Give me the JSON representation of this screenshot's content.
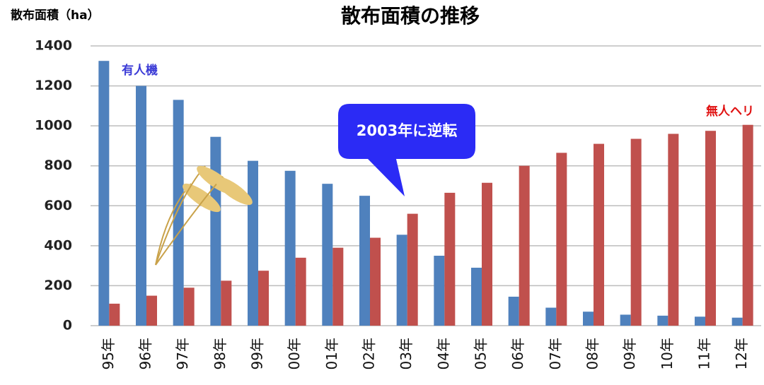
{
  "chart_data": {
    "type": "bar",
    "title": "散布面積の推移",
    "y_label": "散布面積（ha）",
    "annotation": "2003年に逆転",
    "categories": [
      "95年",
      "96年",
      "97年",
      "98年",
      "99年",
      "00年",
      "01年",
      "02年",
      "03年",
      "04年",
      "05年",
      "06年",
      "07年",
      "08年",
      "09年",
      "10年",
      "11年",
      "12年"
    ],
    "series": [
      {
        "name": "有人機",
        "color": "#4f81bd",
        "values": [
          1325,
          1200,
          1130,
          945,
          825,
          775,
          710,
          650,
          455,
          350,
          290,
          145,
          90,
          70,
          55,
          50,
          45,
          40
        ]
      },
      {
        "name": "無人ヘリ",
        "color": "#c0504d",
        "values": [
          110,
          150,
          190,
          225,
          275,
          340,
          390,
          440,
          560,
          665,
          715,
          800,
          865,
          910,
          935,
          960,
          975,
          1005
        ]
      }
    ],
    "ylim": [
      0,
      1400
    ],
    "yticks": [
      0,
      200,
      400,
      600,
      800,
      1000,
      1200,
      1400
    ],
    "grid": true
  }
}
